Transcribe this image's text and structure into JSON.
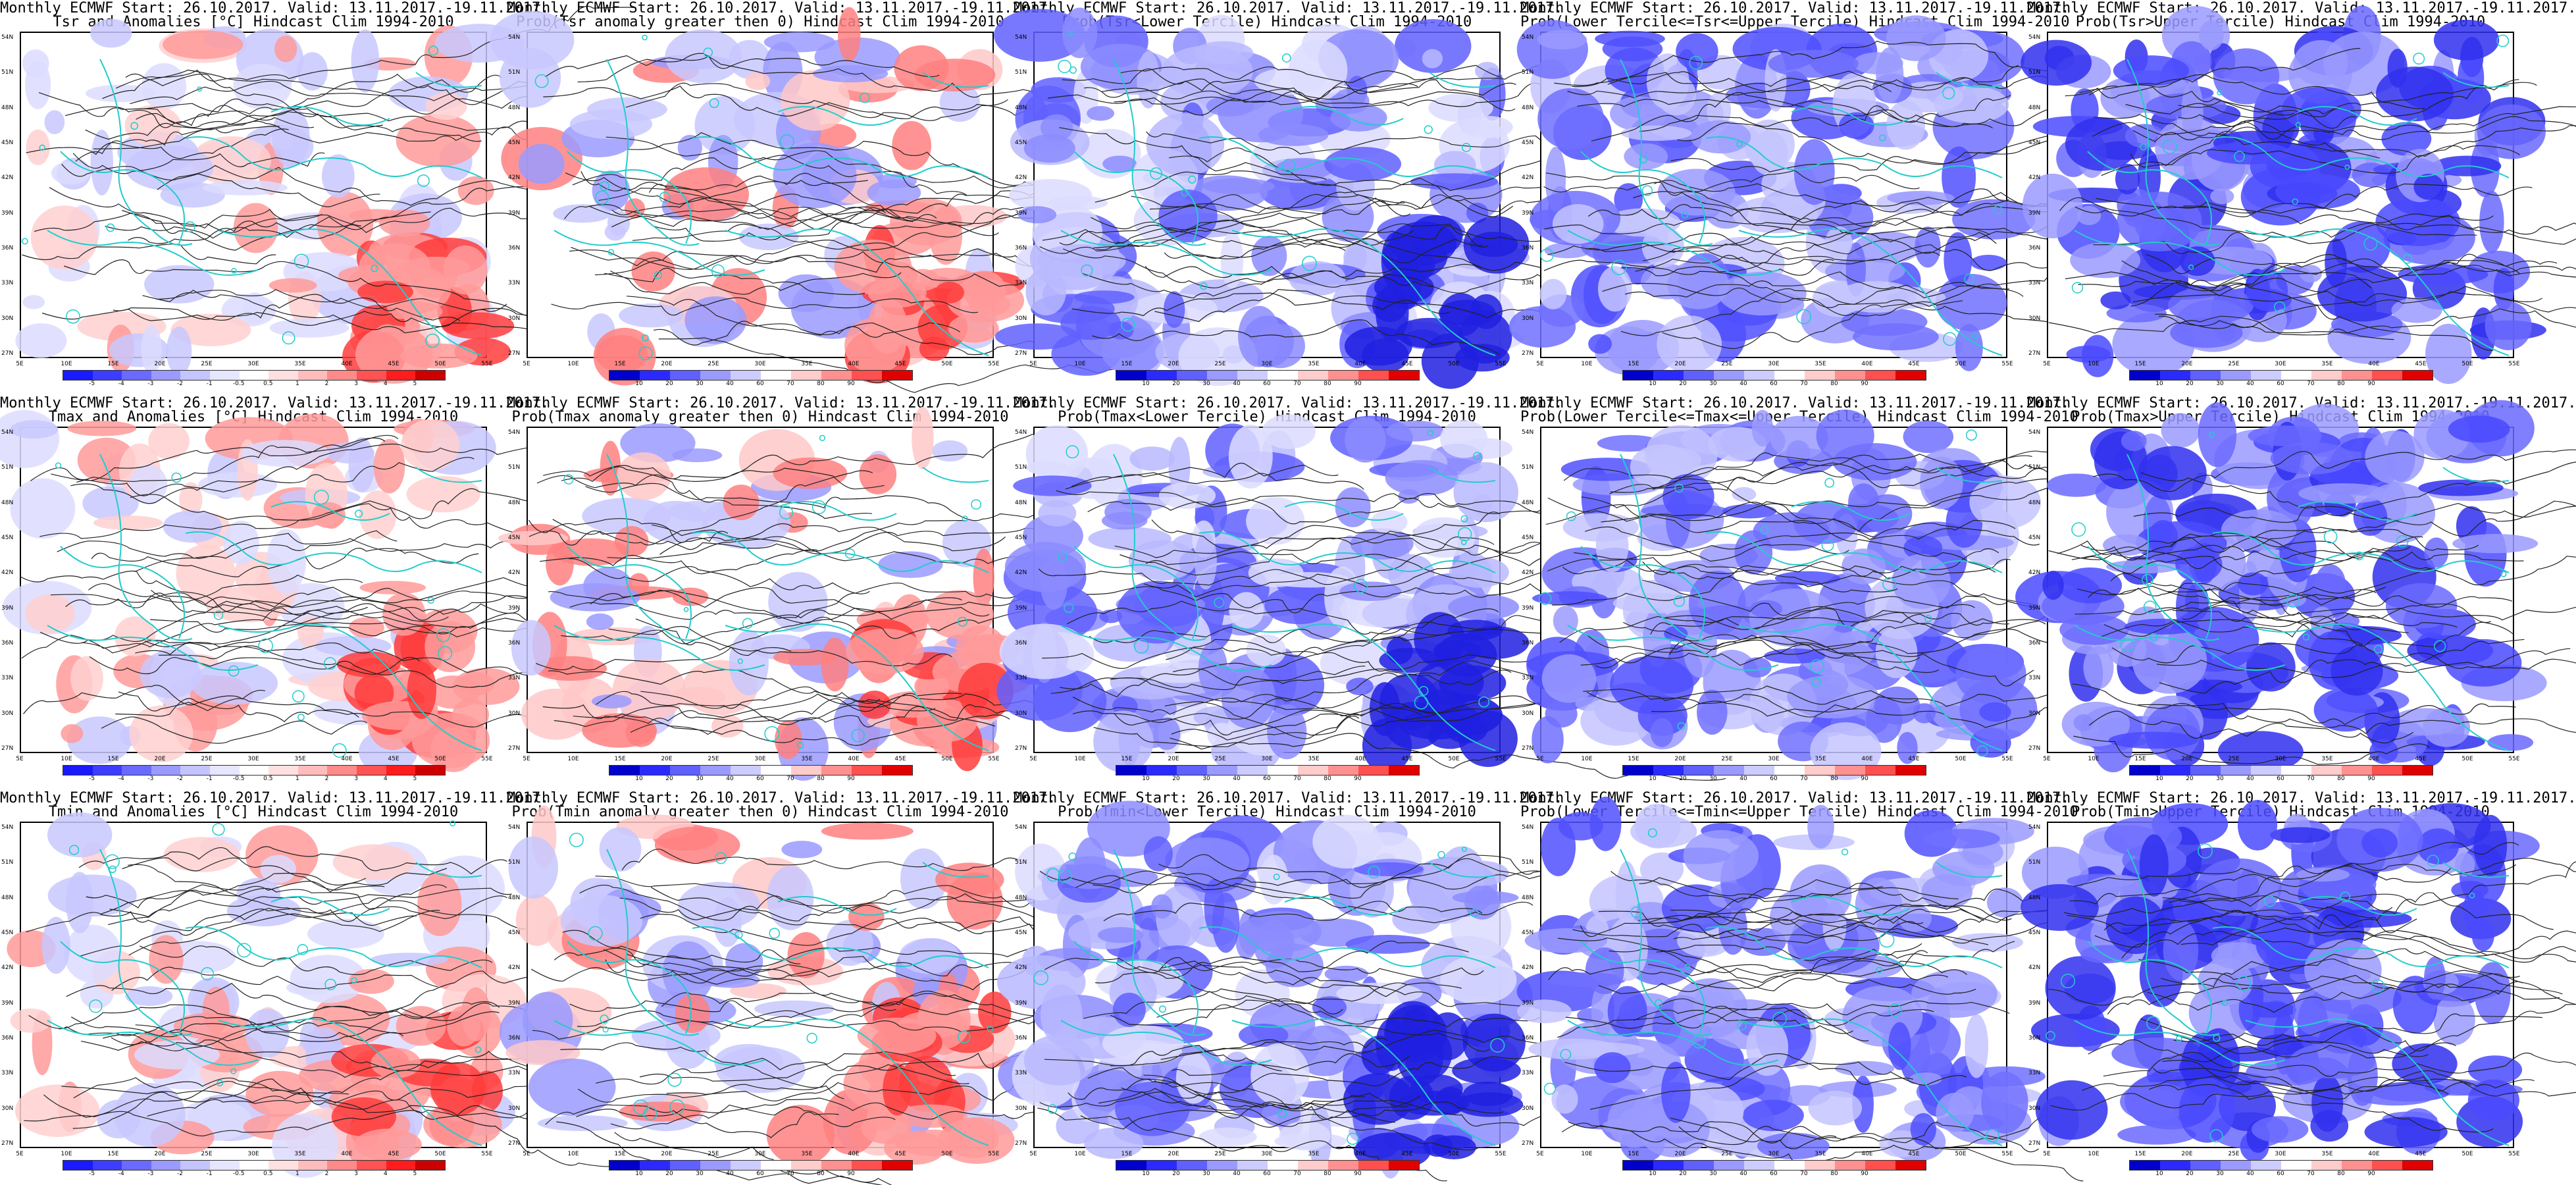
{
  "panels": [
    {
      "line1": "Monthly ECMWF Start: 26.10.2017. Valid: 13.11.2017.-19.11.2017.",
      "line2": "Tsr and Anomalies [°C] Hindcast Clim 1994-2010",
      "kind": "anom",
      "scale": "anomaly"
    },
    {
      "line1": "Monthly ECMWF Start: 26.10.2017. Valid: 13.11.2017.-19.11.2017.",
      "line2": "Prob(Tsr anomaly greater then 0) Hindcast Clim 1994-2010",
      "kind": "probpos",
      "scale": "prob"
    },
    {
      "line1": "Monthly ECMWF Start: 26.10.2017. Valid: 13.11.2017.-19.11.2017.",
      "line2": "Prob(Tsr<Lower Tercile) Hindcast Clim 1994-2010",
      "kind": "lower",
      "scale": "prob"
    },
    {
      "line1": "Monthly ECMWF Start: 26.10.2017. Valid: 13.11.2017.-19.11.2017.",
      "line2": "Prob(Lower Tercile<=Tsr<=Upper Tercile) Hindcast Clim 1994-2010",
      "kind": "middle",
      "scale": "prob"
    },
    {
      "line1": "Monthly ECMWF Start: 26.10.2017. Valid: 13.11.2017.-19.11.2017.",
      "line2": "Prob(Tsr>Upper Tercile) Hindcast Clim 1994-2010",
      "kind": "upper",
      "scale": "prob"
    },
    {
      "line1": "Monthly ECMWF Start: 26.10.2017. Valid: 13.11.2017.-19.11.2017.",
      "line2": "Tmax and Anomalies [°C] Hindcast Clim 1994-2010",
      "kind": "anom",
      "scale": "anomaly"
    },
    {
      "line1": "Monthly ECMWF Start: 26.10.2017. Valid: 13.11.2017.-19.11.2017.",
      "line2": "Prob(Tmax anomaly greater then 0) Hindcast Clim 1994-2010",
      "kind": "probpos",
      "scale": "prob"
    },
    {
      "line1": "Monthly ECMWF Start: 26.10.2017. Valid: 13.11.2017.-19.11.2017.",
      "line2": "Prob(Tmax<Lower Tercile) Hindcast Clim 1994-2010",
      "kind": "lower",
      "scale": "prob"
    },
    {
      "line1": "Monthly ECMWF Start: 26.10.2017. Valid: 13.11.2017.-19.11.2017.",
      "line2": "Prob(Lower Tercile<=Tmax<=Upper Tercile) Hindcast Clim 1994-2010",
      "kind": "middle",
      "scale": "prob"
    },
    {
      "line1": "Monthly ECMWF Start: 26.10.2017. Valid: 13.11.2017.-19.11.2017.",
      "line2": "Prob(Tmax>Upper Tercile) Hindcast Clim 1994-2010",
      "kind": "upper",
      "scale": "prob"
    },
    {
      "line1": "Monthly ECMWF Start: 26.10.2017. Valid: 13.11.2017.-19.11.2017.",
      "line2": "Tmin and Anomalies [°C] Hindcast Clim 1994-2010",
      "kind": "anom",
      "scale": "anomaly"
    },
    {
      "line1": "Monthly ECMWF Start: 26.10.2017. Valid: 13.11.2017.-19.11.2017.",
      "line2": "Prob(Tmin anomaly greater then 0) Hindcast Clim 1994-2010",
      "kind": "probpos",
      "scale": "prob"
    },
    {
      "line1": "Monthly ECMWF Start: 26.10.2017. Valid: 13.11.2017.-19.11.2017.",
      "line2": "Prob(Tmin<Lower Tercile) Hindcast Clim 1994-2010",
      "kind": "lower",
      "scale": "prob"
    },
    {
      "line1": "Monthly ECMWF Start: 26.10.2017. Valid: 13.11.2017.-19.11.2017.",
      "line2": "Prob(Lower Tercile<=Tmin<=Upper Tercile) Hindcast Clim 1994-2010",
      "kind": "middle",
      "scale": "prob"
    },
    {
      "line1": "Monthly ECMWF Start: 26.10.2017. Valid: 13.11.2017.-19.11.2017.",
      "line2": "Prob(Tmin>Upper Tercile) Hindcast Clim 1994-2010",
      "kind": "upper",
      "scale": "prob"
    }
  ],
  "lat_labels": [
    "54N",
    "51N",
    "48N",
    "45N",
    "42N",
    "39N",
    "36N",
    "33N",
    "30N",
    "27N"
  ],
  "lon_labels": [
    "5E",
    "10E",
    "15E",
    "20E",
    "25E",
    "30E",
    "35E",
    "40E",
    "45E",
    "50E",
    "55E"
  ],
  "scales": {
    "anomaly": {
      "ticks": [
        "-5",
        "-4",
        "-3",
        "-2",
        "-1",
        "-0.5",
        "0.5",
        "1",
        "2",
        "3",
        "4",
        "5"
      ],
      "colors": [
        "#1a1aff",
        "#3d3dff",
        "#6a6aff",
        "#9a9aff",
        "#c4c4ff",
        "#e6e6ff",
        "#ffffff",
        "#ffe0e0",
        "#ffbcbc",
        "#ff8a8a",
        "#ff5252",
        "#ff1c1c",
        "#cc0000"
      ]
    },
    "prob": {
      "ticks": [
        "10",
        "20",
        "30",
        "40",
        "60",
        "70",
        "80",
        "90"
      ],
      "colors": [
        "#0000cc",
        "#2a2aff",
        "#6060ff",
        "#9a9aff",
        "#ccccff",
        "#ffffff",
        "#ffcccc",
        "#ff9090",
        "#ff5050",
        "#e00000"
      ]
    }
  },
  "colors": {
    "contour": "#222222",
    "coast": "#22cccc"
  }
}
